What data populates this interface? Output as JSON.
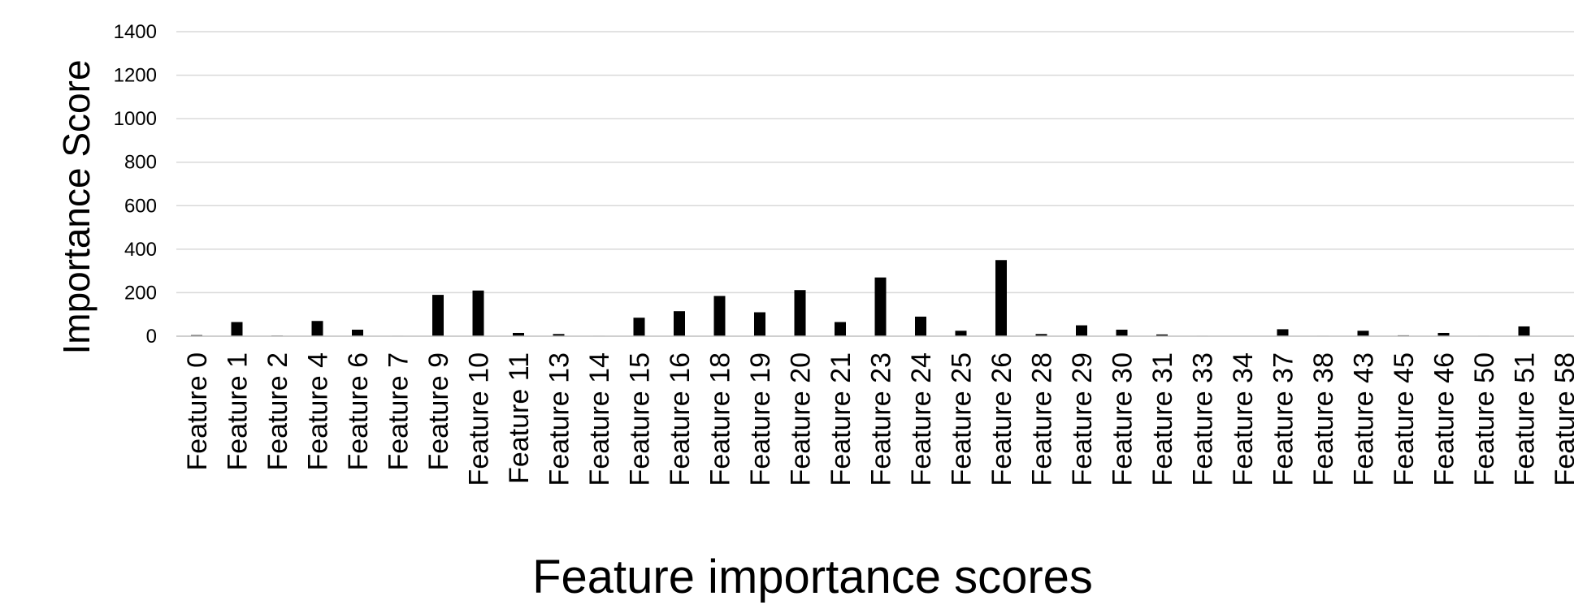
{
  "chart_data": {
    "type": "bar",
    "xlabel": "Feature importance scores",
    "ylabel": "Importance Score",
    "ylim": [
      0,
      1400
    ],
    "yticks": [
      "0",
      "200",
      "400",
      "600",
      "800",
      "1000",
      "1200",
      "1400"
    ],
    "grid": true,
    "legend": "none",
    "bar_color": "#000000",
    "grid_color": "#d9d9d9",
    "categories": [
      "Feature 0",
      "Feature 1",
      "Feature 2",
      "Feature 4",
      "Feature 6",
      "Feature 7",
      "Feature 9",
      "Feature 10",
      "Feature 11",
      "Feature 13",
      "Feature 14",
      "Feature 15",
      "Feature 16",
      "Feature 18",
      "Feature 19",
      "Feature 20",
      "Feature 21",
      "Feature 23",
      "Feature 24",
      "Feature 25",
      "Feature 26",
      "Feature 28",
      "Feature 29",
      "Feature 30",
      "Feature 31",
      "Feature 33",
      "Feature 34",
      "Feature 37",
      "Feature 38",
      "Feature 43",
      "Feature 45",
      "Feature 46",
      "Feature 50",
      "Feature 51",
      "Feature 58"
    ],
    "values": [
      5,
      65,
      3,
      70,
      30,
      2,
      190,
      210,
      15,
      10,
      2,
      85,
      115,
      185,
      110,
      212,
      65,
      270,
      90,
      25,
      350,
      10,
      50,
      30,
      8,
      2,
      0,
      32,
      2,
      25,
      4,
      15,
      2,
      45,
      0
    ]
  }
}
